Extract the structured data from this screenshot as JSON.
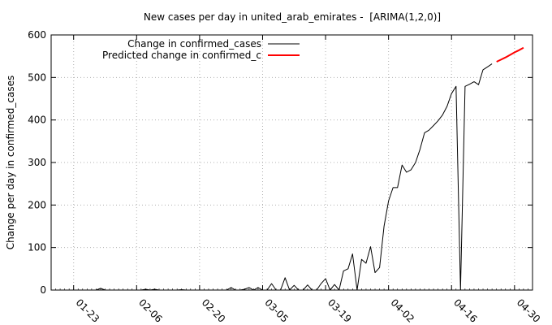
{
  "chart_data": {
    "type": "line",
    "title": "New cases per day in united_arab_emirates -  [ARIMA(1,2,0)]",
    "xlabel": "",
    "ylabel": "Change per day in confirmed_cases",
    "x_axis": {
      "type": "date",
      "range": [
        "2020-01-18",
        "2020-05-04"
      ],
      "tick_labels": [
        "01-23",
        "02-06",
        "02-20",
        "03-05",
        "03-19",
        "04-02",
        "04-16",
        "04-30"
      ],
      "tick_dates": [
        "2020-01-23",
        "2020-02-06",
        "2020-02-20",
        "2020-03-05",
        "2020-03-19",
        "2020-04-02",
        "2020-04-16",
        "2020-04-30"
      ]
    },
    "ylim": [
      0,
      600
    ],
    "y_ticks": [
      0,
      100,
      200,
      300,
      400,
      500,
      600
    ],
    "grid": true,
    "legend_position": "top-left",
    "series": [
      {
        "name": "Change in confirmed_cases",
        "color": "#000000",
        "style": "solid",
        "points": [
          [
            "2020-01-18",
            0
          ],
          [
            "2020-01-23",
            0
          ],
          [
            "2020-01-24",
            0
          ],
          [
            "2020-01-25",
            0
          ],
          [
            "2020-01-26",
            0
          ],
          [
            "2020-01-27",
            0
          ],
          [
            "2020-01-28",
            0
          ],
          [
            "2020-01-29",
            4
          ],
          [
            "2020-01-30",
            0
          ],
          [
            "2020-01-31",
            0
          ],
          [
            "2020-02-01",
            0
          ],
          [
            "2020-02-02",
            0
          ],
          [
            "2020-02-03",
            0
          ],
          [
            "2020-02-04",
            0
          ],
          [
            "2020-02-05",
            0
          ],
          [
            "2020-02-06",
            0
          ],
          [
            "2020-02-07",
            0
          ],
          [
            "2020-02-08",
            2
          ],
          [
            "2020-02-09",
            0
          ],
          [
            "2020-02-10",
            2
          ],
          [
            "2020-02-11",
            0
          ],
          [
            "2020-02-12",
            0
          ],
          [
            "2020-02-13",
            0
          ],
          [
            "2020-02-14",
            0
          ],
          [
            "2020-02-15",
            0
          ],
          [
            "2020-02-16",
            1
          ],
          [
            "2020-02-17",
            0
          ],
          [
            "2020-02-18",
            0
          ],
          [
            "2020-02-19",
            0
          ],
          [
            "2020-02-20",
            0
          ],
          [
            "2020-02-21",
            0
          ],
          [
            "2020-02-22",
            0
          ],
          [
            "2020-02-23",
            0
          ],
          [
            "2020-02-24",
            0
          ],
          [
            "2020-02-25",
            0
          ],
          [
            "2020-02-26",
            0
          ],
          [
            "2020-02-27",
            6
          ],
          [
            "2020-02-28",
            0
          ],
          [
            "2020-02-29",
            0
          ],
          [
            "2020-03-01",
            2
          ],
          [
            "2020-03-02",
            6
          ],
          [
            "2020-03-03",
            0
          ],
          [
            "2020-03-04",
            6
          ],
          [
            "2020-03-05",
            0
          ],
          [
            "2020-03-06",
            0
          ],
          [
            "2020-03-07",
            15
          ],
          [
            "2020-03-08",
            0
          ],
          [
            "2020-03-09",
            0
          ],
          [
            "2020-03-10",
            29
          ],
          [
            "2020-03-11",
            0
          ],
          [
            "2020-03-12",
            11
          ],
          [
            "2020-03-13",
            0
          ],
          [
            "2020-03-14",
            0
          ],
          [
            "2020-03-15",
            12
          ],
          [
            "2020-03-16",
            0
          ],
          [
            "2020-03-17",
            0
          ],
          [
            "2020-03-18",
            15
          ],
          [
            "2020-03-19",
            27
          ],
          [
            "2020-03-20",
            0
          ],
          [
            "2020-03-21",
            13
          ],
          [
            "2020-03-22",
            0
          ],
          [
            "2020-03-23",
            45
          ],
          [
            "2020-03-24",
            50
          ],
          [
            "2020-03-25",
            85
          ],
          [
            "2020-03-26",
            0
          ],
          [
            "2020-03-27",
            72
          ],
          [
            "2020-03-28",
            63
          ],
          [
            "2020-03-29",
            102
          ],
          [
            "2020-03-30",
            41
          ],
          [
            "2020-03-31",
            53
          ],
          [
            "2020-04-01",
            150
          ],
          [
            "2020-04-02",
            210
          ],
          [
            "2020-04-03",
            241
          ],
          [
            "2020-04-04",
            241
          ],
          [
            "2020-04-05",
            294
          ],
          [
            "2020-04-06",
            277
          ],
          [
            "2020-04-07",
            283
          ],
          [
            "2020-04-08",
            300
          ],
          [
            "2020-04-09",
            331
          ],
          [
            "2020-04-10",
            370
          ],
          [
            "2020-04-11",
            376
          ],
          [
            "2020-04-12",
            387
          ],
          [
            "2020-04-13",
            398
          ],
          [
            "2020-04-14",
            412
          ],
          [
            "2020-04-15",
            432
          ],
          [
            "2020-04-16",
            462
          ],
          [
            "2020-04-17",
            479
          ],
          [
            "2020-04-18",
            0
          ],
          [
            "2020-04-19",
            479
          ],
          [
            "2020-04-20",
            484
          ],
          [
            "2020-04-21",
            490
          ],
          [
            "2020-04-22",
            483
          ],
          [
            "2020-04-23",
            518
          ],
          [
            "2020-04-24",
            525
          ],
          [
            "2020-04-25",
            532
          ]
        ]
      },
      {
        "name": "Predicted change in confirmed_c",
        "color": "#ff0000",
        "style": "solid",
        "points": [
          [
            "2020-04-26",
            537
          ],
          [
            "2020-04-27",
            542
          ],
          [
            "2020-04-28",
            547
          ],
          [
            "2020-04-29",
            553
          ],
          [
            "2020-04-30",
            559
          ],
          [
            "2020-05-01",
            564
          ],
          [
            "2020-05-02",
            570
          ]
        ]
      }
    ]
  }
}
